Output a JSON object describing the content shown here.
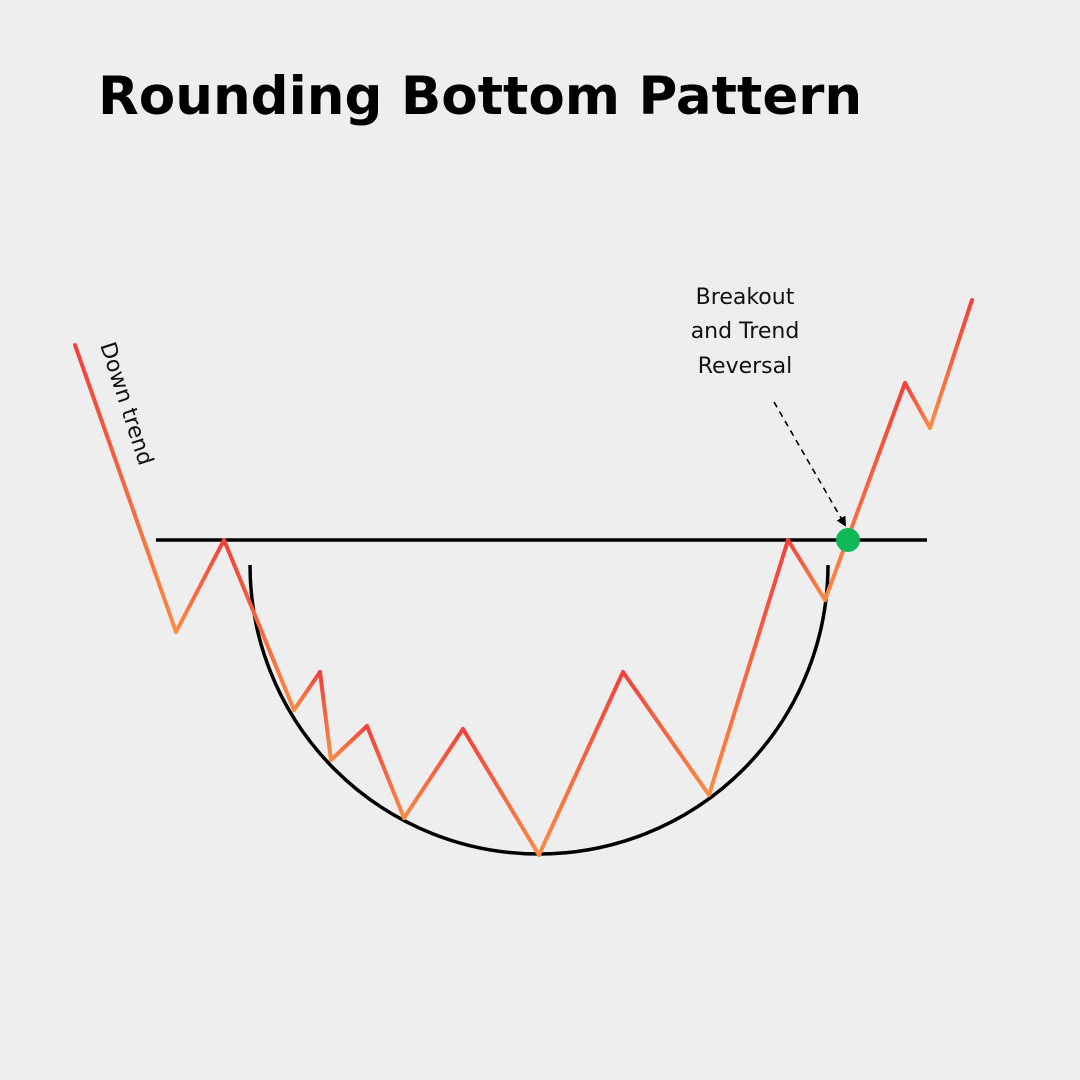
{
  "title": "Rounding Bottom Pattern",
  "labels": {
    "downtrend": "Down trend",
    "breakout_lines": [
      "Breakout",
      "and Trend",
      "Reversal"
    ]
  },
  "colors": {
    "background": "#efeeee",
    "price_red": "#f0413b",
    "price_orange": "#f98b45",
    "resistance": "#000000",
    "bowl": "#000000",
    "breakout_point": "#10b858",
    "arrow": "#000000"
  }
}
